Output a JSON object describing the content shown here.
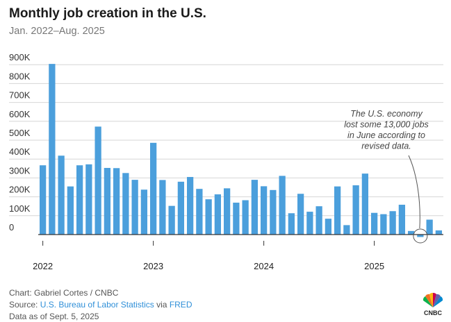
{
  "header": {
    "title": "Monthly job creation in the U.S.",
    "subtitle": "Jan. 2022–Aug. 2025"
  },
  "annotation": {
    "lines": [
      "The U.S. economy",
      "lost some 13,000 jobs",
      "in June according to",
      "revised data."
    ]
  },
  "footer": {
    "credit": "Chart: Gabriel Cortes / CNBC",
    "source_prefix": "Source: ",
    "source_link1": "U.S. Bureau of Labor Statistics",
    "source_mid": " via ",
    "source_link2": "FRED",
    "data_as_of": "Data as of Sept. 5, 2025"
  },
  "logo": {
    "text": "CNBC"
  },
  "colors": {
    "bar": "#4b9fdc",
    "grid": "#d6d6d6",
    "axis": "#333333",
    "highlight_ring": "#555555"
  },
  "chart_data": {
    "type": "bar",
    "x_tick_labels": [
      "2022",
      "2023",
      "2024",
      "2025"
    ],
    "y_tick_labels": [
      "0",
      "100K",
      "200K",
      "300K",
      "400K",
      "500K",
      "600K",
      "700K",
      "800K",
      "900K"
    ],
    "ylim": [
      -30000,
      900000
    ],
    "grid": true,
    "categories": [
      "2022-01",
      "2022-02",
      "2022-03",
      "2022-04",
      "2022-05",
      "2022-06",
      "2022-07",
      "2022-08",
      "2022-09",
      "2022-10",
      "2022-11",
      "2022-12",
      "2023-01",
      "2023-02",
      "2023-03",
      "2023-04",
      "2023-05",
      "2023-06",
      "2023-07",
      "2023-08",
      "2023-09",
      "2023-10",
      "2023-11",
      "2023-12",
      "2024-01",
      "2024-02",
      "2024-03",
      "2024-04",
      "2024-05",
      "2024-06",
      "2024-07",
      "2024-08",
      "2024-09",
      "2024-10",
      "2024-11",
      "2024-12",
      "2025-01",
      "2025-02",
      "2025-03",
      "2025-04",
      "2025-05",
      "2025-06",
      "2025-07",
      "2025-08"
    ],
    "values": [
      367000,
      904000,
      418000,
      255000,
      367000,
      372000,
      572000,
      353000,
      352000,
      326000,
      290000,
      238000,
      486000,
      289000,
      152000,
      280000,
      305000,
      242000,
      187000,
      213000,
      245000,
      169000,
      182000,
      290000,
      256000,
      236000,
      311000,
      113000,
      216000,
      121000,
      150000,
      84000,
      255000,
      50000,
      261000,
      323000,
      115000,
      108000,
      124000,
      158000,
      19000,
      -13000,
      79000,
      22000
    ],
    "highlight_category": "2025-06"
  }
}
